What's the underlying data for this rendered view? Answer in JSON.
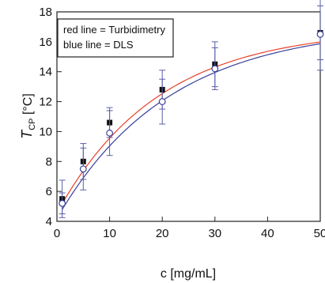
{
  "chart_data": {
    "type": "scatter",
    "title": "",
    "xlabel": "c [mg/mL]",
    "ylabel_main": "T",
    "ylabel_sub": "CP",
    "ylabel_unit": " [°C]",
    "xlim": [
      0,
      50
    ],
    "ylim": [
      4,
      18
    ],
    "x_ticks": [
      0,
      10,
      20,
      30,
      40,
      50
    ],
    "y_ticks": [
      4,
      6,
      8,
      10,
      12,
      14,
      16,
      18
    ],
    "grid": false,
    "legend": {
      "placement": "top-left",
      "entries": [
        "red line = Turbidimetry",
        "blue line = DLS"
      ]
    },
    "series": [
      {
        "name": "Turbidimetry",
        "marker": "filled-square",
        "color": "#111111",
        "fit_color": "#e8402a",
        "x": [
          1,
          5,
          10,
          20,
          30,
          50
        ],
        "y": [
          5.5,
          8.0,
          10.6,
          12.8,
          14.5,
          16.6
        ],
        "err": [
          1.25,
          1.2,
          1.0,
          1.3,
          1.5,
          1.8
        ],
        "fit": {
          "a": 16.9,
          "b": 12.35,
          "k": 0.052
        }
      },
      {
        "name": "DLS",
        "marker": "open-circle",
        "color": "#3a3f9a",
        "fit_color": "#3a3f9a",
        "x": [
          1,
          5,
          10,
          20,
          30,
          50
        ],
        "y": [
          5.2,
          7.5,
          9.9,
          12.0,
          14.2,
          16.5
        ],
        "err": [
          0.7,
          1.4,
          1.5,
          1.5,
          1.4,
          2.4
        ],
        "fit": {
          "a": 17.1,
          "b": 12.9,
          "k": 0.047
        }
      }
    ]
  }
}
